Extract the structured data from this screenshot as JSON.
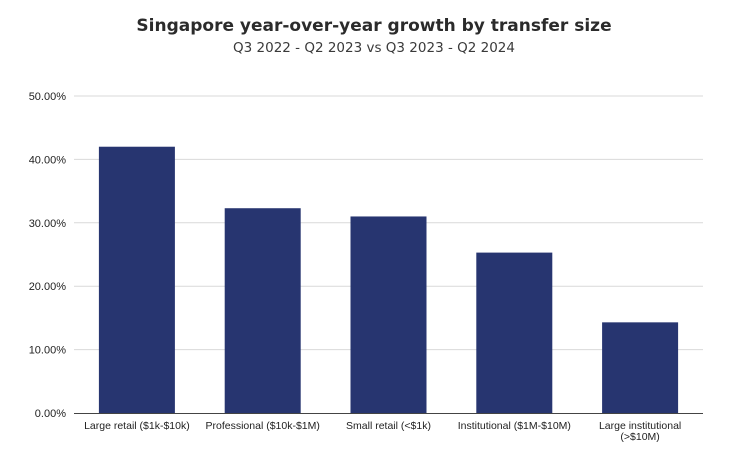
{
  "chart_data": {
    "type": "bar",
    "title": "Singapore year-over-year growth by transfer size",
    "subtitle": "Q3 2022 - Q2 2023 vs Q3 2023 - Q2 2024",
    "categories": [
      [
        "Large retail ($1k-$10k)"
      ],
      [
        "Professional ($10k-$1M)"
      ],
      [
        "Small retail (<$1k)"
      ],
      [
        "Institutional ($1M-$10M)"
      ],
      [
        "Large institutional",
        "(>$10M)"
      ]
    ],
    "values": [
      42.0,
      32.3,
      31.0,
      25.3,
      14.3
    ],
    "yticks": [
      "0.00%",
      "10.00%",
      "20.00%",
      "30.00%",
      "40.00%",
      "50.00%"
    ],
    "ylim": [
      0,
      50
    ],
    "xlabel": "",
    "ylabel": "",
    "grid": true,
    "bar_color": "#273570"
  }
}
